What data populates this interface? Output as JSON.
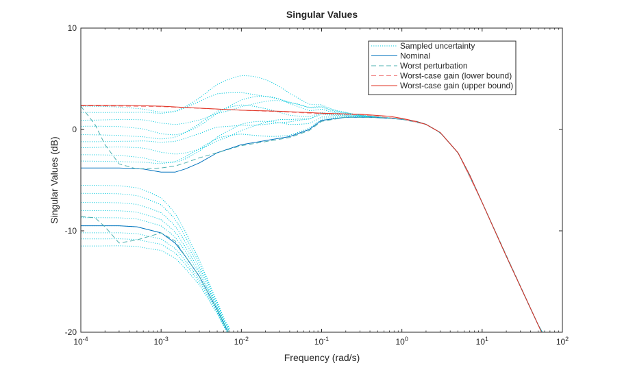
{
  "chart_data": {
    "type": "line",
    "title": "Singular Values",
    "xlabel": "Frequency (rad/s)",
    "ylabel": "Singular Values (dB)",
    "xscale": "log",
    "xlim": [
      0.0001,
      100
    ],
    "ylim": [
      -20,
      10
    ],
    "xticks": [
      {
        "value": 0.0001,
        "base": "10",
        "exp": "-4"
      },
      {
        "value": 0.001,
        "base": "10",
        "exp": "-3"
      },
      {
        "value": 0.01,
        "base": "10",
        "exp": "-2"
      },
      {
        "value": 0.1,
        "base": "10",
        "exp": "-1"
      },
      {
        "value": 1,
        "base": "10",
        "exp": "0"
      },
      {
        "value": 10,
        "base": "10",
        "exp": "1"
      },
      {
        "value": 100,
        "base": "10",
        "exp": "2"
      }
    ],
    "yticks": [
      {
        "value": 10,
        "label": "10"
      },
      {
        "value": 0,
        "label": "0"
      },
      {
        "value": -10,
        "label": "-10"
      },
      {
        "value": -20,
        "label": "-20"
      }
    ],
    "grid": false,
    "legend_position": "top-right",
    "legend": [
      {
        "label": "Sampled uncertainty",
        "color": "#00c8dc",
        "style": "dotted"
      },
      {
        "label": "Nominal",
        "color": "#0072bd",
        "style": "solid"
      },
      {
        "label": "Worst perturbation",
        "color": "#4eb0b0",
        "style": "dashed"
      },
      {
        "label": "Worst-case gain (lower bound)",
        "color": "#f08080",
        "style": "dashed"
      },
      {
        "label": "Worst-case gain (upper bound)",
        "color": "#e03020",
        "style": "solid"
      }
    ],
    "series": [
      {
        "role": "nominal",
        "color": "#0072bd",
        "style": "solid",
        "x": [
          0.0001,
          0.0003,
          0.0006,
          0.001,
          0.0015,
          0.002,
          0.003,
          0.005,
          0.01,
          0.02,
          0.04,
          0.07,
          0.1,
          0.2,
          0.4,
          0.7,
          1,
          1.5,
          2,
          3,
          5,
          7,
          10,
          20,
          55
        ],
        "y": [
          -3.8,
          -3.8,
          -3.9,
          -4.2,
          -4.2,
          -3.9,
          -3.3,
          -2.3,
          -1.5,
          -1.1,
          -0.7,
          0.0,
          0.9,
          1.2,
          1.2,
          1.1,
          1.0,
          0.8,
          0.5,
          -0.3,
          -2.3,
          -4.5,
          -7.2,
          -12.5,
          -20
        ]
      },
      {
        "role": "nominal",
        "color": "#0072bd",
        "style": "solid",
        "x": [
          0.0001,
          0.0003,
          0.0005,
          0.001,
          0.0015,
          0.002,
          0.003,
          0.005,
          0.0068
        ],
        "y": [
          -9.5,
          -9.5,
          -9.6,
          -10.2,
          -11.2,
          -12.5,
          -14.5,
          -17.8,
          -20
        ]
      },
      {
        "role": "worst-perturbation",
        "color": "#4eb0b0",
        "style": "dashed",
        "x": [
          0.0001,
          0.00015,
          0.0002,
          0.0003,
          0.0005,
          0.001,
          0.0015,
          0.002,
          0.003,
          0.005,
          0.01,
          0.02,
          0.04,
          0.07,
          0.1,
          0.2,
          0.5,
          1,
          2,
          3,
          5,
          10,
          55
        ],
        "y": [
          2.3,
          0.5,
          -1.5,
          -3.4,
          -3.9,
          -3.8,
          -3.6,
          -3.3,
          -2.8,
          -2.3,
          -1.6,
          -1.2,
          -0.8,
          -0.1,
          0.8,
          1.2,
          1.2,
          1.0,
          0.5,
          -0.3,
          -2.3,
          -7.2,
          -20
        ]
      },
      {
        "role": "worst-perturbation",
        "color": "#4eb0b0",
        "style": "dashed",
        "x": [
          0.0001,
          0.00015,
          0.0002,
          0.0003,
          0.0005,
          0.001,
          0.0015,
          0.002,
          0.003,
          0.005,
          0.0068
        ],
        "y": [
          -8.6,
          -8.7,
          -9.6,
          -11.2,
          -10.9,
          -10.2,
          -11.0,
          -12.5,
          -14.5,
          -17.8,
          -20
        ]
      },
      {
        "role": "worst-case-lower",
        "color": "#f08080",
        "style": "dashed",
        "x": [
          0.0001,
          0.001,
          0.01,
          0.03,
          0.1,
          0.3,
          1,
          2,
          3,
          5,
          10,
          20,
          55
        ],
        "y": [
          2.35,
          2.25,
          1.9,
          1.75,
          1.55,
          1.45,
          1.05,
          0.5,
          -0.3,
          -2.3,
          -7.2,
          -12.5,
          -20
        ]
      },
      {
        "role": "worst-case-upper",
        "color": "#e03020",
        "style": "solid",
        "x": [
          0.0001,
          0.0003,
          0.001,
          0.003,
          0.01,
          0.03,
          0.1,
          0.3,
          0.7,
          1,
          1.5,
          2,
          3,
          5,
          7,
          10,
          20,
          55
        ],
        "y": [
          2.4,
          2.4,
          2.3,
          2.1,
          1.9,
          1.8,
          1.6,
          1.5,
          1.3,
          1.1,
          0.8,
          0.5,
          -0.3,
          -2.3,
          -4.5,
          -7.2,
          -12.5,
          -20
        ]
      }
    ],
    "sampled_high_y0": [
      2.3,
      1.7,
      0.9,
      0.3,
      -0.5,
      -1.2,
      -1.8,
      -2.5,
      -3.1
    ],
    "sampled_low_y0": [
      -5.5,
      -6.3,
      -7.2,
      -8.0,
      -8.7,
      -9.5,
      -10.2,
      -10.8,
      -11.5
    ]
  }
}
